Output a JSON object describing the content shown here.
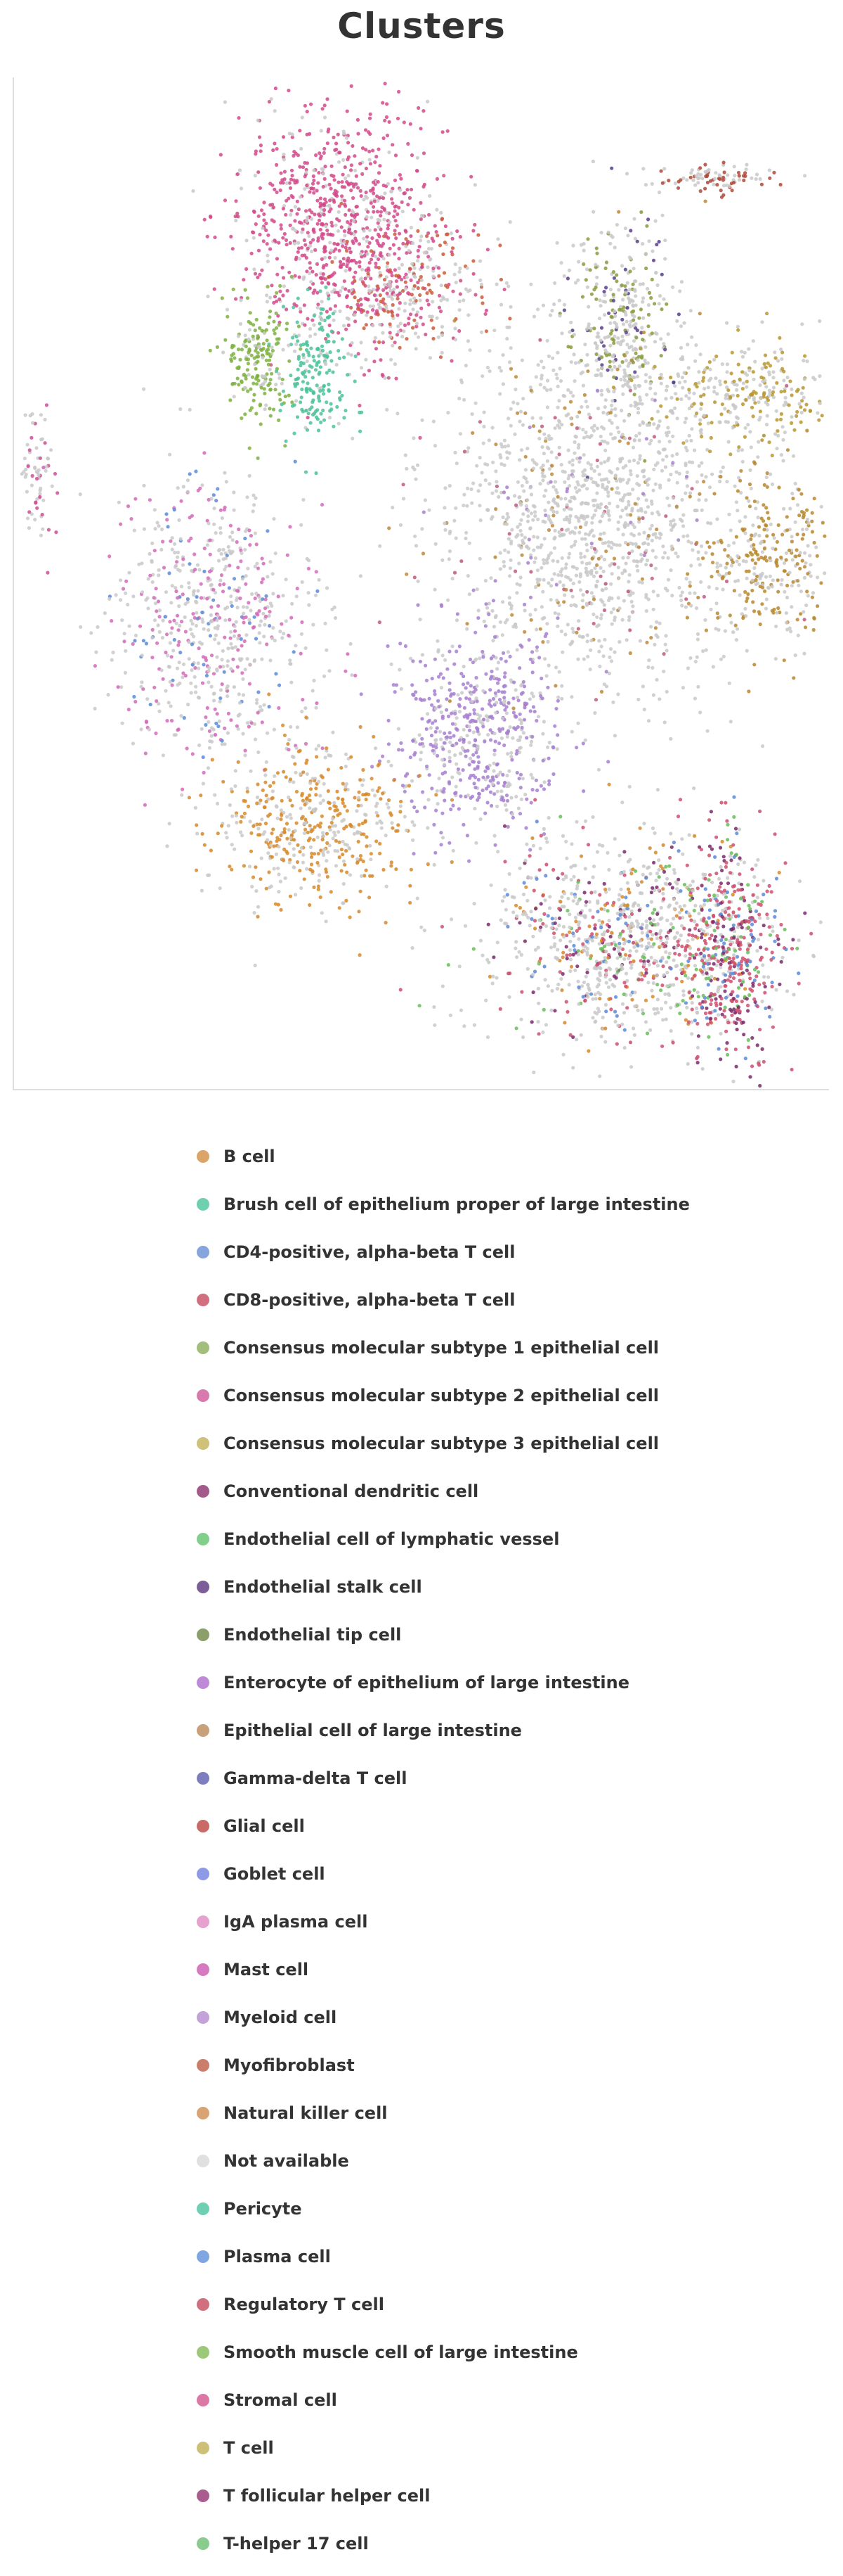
{
  "title": "Clusters",
  "chart_data": {
    "type": "scatter",
    "title": "Clusters",
    "xlabel": "",
    "ylabel": "",
    "grid": false,
    "legend_position": "bottom",
    "legend": [
      {
        "label": "B cell",
        "color": "#dba56a"
      },
      {
        "label": "Brush cell of epithelium proper of large intestine",
        "color": "#6fd0b0"
      },
      {
        "label": "CD4-positive, alpha-beta T cell",
        "color": "#85a5dc"
      },
      {
        "label": "CD8-positive, alpha-beta T cell",
        "color": "#cf6f80"
      },
      {
        "label": "Consensus molecular subtype 1 epithelial cell",
        "color": "#a2bd7c"
      },
      {
        "label": "Consensus molecular subtype 2 epithelial cell",
        "color": "#d97aae"
      },
      {
        "label": "Consensus molecular subtype 3 epithelial cell",
        "color": "#cfc07a"
      },
      {
        "label": "Conventional dendritic cell",
        "color": "#a35a8a"
      },
      {
        "label": "Endothelial cell of lymphatic vessel",
        "color": "#82cf8c"
      },
      {
        "label": "Endothelial stalk cell",
        "color": "#7d5d98"
      },
      {
        "label": "Endothelial tip cell",
        "color": "#8c9e6a"
      },
      {
        "label": "Enterocyte of epithelium of large intestine",
        "color": "#be8ad7"
      },
      {
        "label": "Epithelial cell of large intestine",
        "color": "#c8a07a"
      },
      {
        "label": "Gamma-delta T cell",
        "color": "#7e7ebf"
      },
      {
        "label": "Glial cell",
        "color": "#c96a66"
      },
      {
        "label": "Goblet cell",
        "color": "#8f9ae6"
      },
      {
        "label": "IgA plasma cell",
        "color": "#e5a2cf"
      },
      {
        "label": "Mast cell",
        "color": "#d67ac0"
      },
      {
        "label": "Myeloid cell",
        "color": "#c2a2d8"
      },
      {
        "label": "Myofibroblast",
        "color": "#c97d6a"
      },
      {
        "label": "Natural killer cell",
        "color": "#d9a474"
      },
      {
        "label": "Not available",
        "color": "#e0e0e0"
      },
      {
        "label": "Pericyte",
        "color": "#6fcfb2"
      },
      {
        "label": "Plasma cell",
        "color": "#7fa6e0"
      },
      {
        "label": "Regulatory T cell",
        "color": "#d0707e"
      },
      {
        "label": "Smooth muscle cell of large intestine",
        "color": "#9ec879"
      },
      {
        "label": "Stromal cell",
        "color": "#dc78a6"
      },
      {
        "label": "T cell",
        "color": "#cdbf77"
      },
      {
        "label": "T follicular helper cell",
        "color": "#a85d8e"
      },
      {
        "label": "T-helper 17 cell",
        "color": "#8acc8e"
      }
    ],
    "clusters": [
      {
        "x": 0.4,
        "y": 0.15,
        "spread": [
          0.06,
          0.06
        ],
        "n": 850,
        "mix": [
          [
            "#d24a8b",
            0.78
          ],
          [
            "#c9c9c9",
            0.22
          ]
        ]
      },
      {
        "x": 0.49,
        "y": 0.21,
        "spread": [
          0.05,
          0.035
        ],
        "n": 300,
        "mix": [
          [
            "#c9c9c9",
            0.5
          ],
          [
            "#cc5a3a",
            0.3
          ],
          [
            "#d24a8b",
            0.2
          ]
        ]
      },
      {
        "x": 0.3,
        "y": 0.28,
        "spread": [
          0.02,
          0.035
        ],
        "n": 200,
        "mix": [
          [
            "#7fb241",
            0.85
          ],
          [
            "#c9c9c9",
            0.15
          ]
        ]
      },
      {
        "x": 0.37,
        "y": 0.29,
        "spread": [
          0.02,
          0.035
        ],
        "n": 200,
        "mix": [
          [
            "#4bc29a",
            0.85
          ],
          [
            "#c9c9c9",
            0.15
          ]
        ]
      },
      {
        "x": 0.75,
        "y": 0.24,
        "spread": [
          0.03,
          0.05
        ],
        "n": 320,
        "mix": [
          [
            "#c9c9c9",
            0.55
          ],
          [
            "#8a9b3c",
            0.3
          ],
          [
            "#5b3f8c",
            0.15
          ]
        ]
      },
      {
        "x": 0.86,
        "y": 0.1,
        "spread": [
          0.035,
          0.008
        ],
        "n": 90,
        "mix": [
          [
            "#c9c9c9",
            0.55
          ],
          [
            "#b04a3a",
            0.45
          ]
        ]
      },
      {
        "x": 0.7,
        "y": 0.43,
        "spread": [
          0.09,
          0.09
        ],
        "n": 1400,
        "mix": [
          [
            "#c9c9c9",
            0.85
          ],
          [
            "#bb8a3a",
            0.08
          ],
          [
            "#c05a80",
            0.04
          ],
          [
            "#a77fd0",
            0.03
          ]
        ]
      },
      {
        "x": 0.9,
        "y": 0.31,
        "spread": [
          0.06,
          0.025
        ],
        "n": 300,
        "mix": [
          [
            "#c9c9c9",
            0.55
          ],
          [
            "#b9962e",
            0.45
          ]
        ]
      },
      {
        "x": 0.93,
        "y": 0.48,
        "spread": [
          0.05,
          0.045
        ],
        "n": 350,
        "mix": [
          [
            "#b9882e",
            0.6
          ],
          [
            "#c9c9c9",
            0.4
          ]
        ]
      },
      {
        "x": 0.03,
        "y": 0.4,
        "spread": [
          0.01,
          0.035
        ],
        "n": 70,
        "mix": [
          [
            "#c9c9c9",
            0.7
          ],
          [
            "#cc4f95",
            0.3
          ]
        ]
      },
      {
        "x": 0.25,
        "y": 0.54,
        "spread": [
          0.06,
          0.07
        ],
        "n": 700,
        "mix": [
          [
            "#c9c9c9",
            0.6
          ],
          [
            "#d26bb8",
            0.3
          ],
          [
            "#5b8ad9",
            0.1
          ]
        ]
      },
      {
        "x": 0.57,
        "y": 0.65,
        "spread": [
          0.05,
          0.05
        ],
        "n": 600,
        "mix": [
          [
            "#a77fd0",
            0.6
          ],
          [
            "#c9c9c9",
            0.4
          ]
        ]
      },
      {
        "x": 0.37,
        "y": 0.74,
        "spread": [
          0.06,
          0.04
        ],
        "n": 500,
        "mix": [
          [
            "#d7892a",
            0.55
          ],
          [
            "#c9c9c9",
            0.45
          ]
        ]
      },
      {
        "x": 0.76,
        "y": 0.85,
        "spread": [
          0.09,
          0.05
        ],
        "n": 1100,
        "mix": [
          [
            "#c9c9c9",
            0.55
          ],
          [
            "#cf4f6e",
            0.13
          ],
          [
            "#7a2a6a",
            0.08
          ],
          [
            "#5b8ad9",
            0.06
          ],
          [
            "#68be5a",
            0.08
          ],
          [
            "#d7892a",
            0.1
          ]
        ]
      },
      {
        "x": 0.88,
        "y": 0.87,
        "spread": [
          0.03,
          0.055
        ],
        "n": 400,
        "mix": [
          [
            "#cf4f6e",
            0.5
          ],
          [
            "#7a2a6a",
            0.25
          ],
          [
            "#5b8ad9",
            0.15
          ],
          [
            "#68be5a",
            0.1
          ]
        ]
      }
    ]
  }
}
